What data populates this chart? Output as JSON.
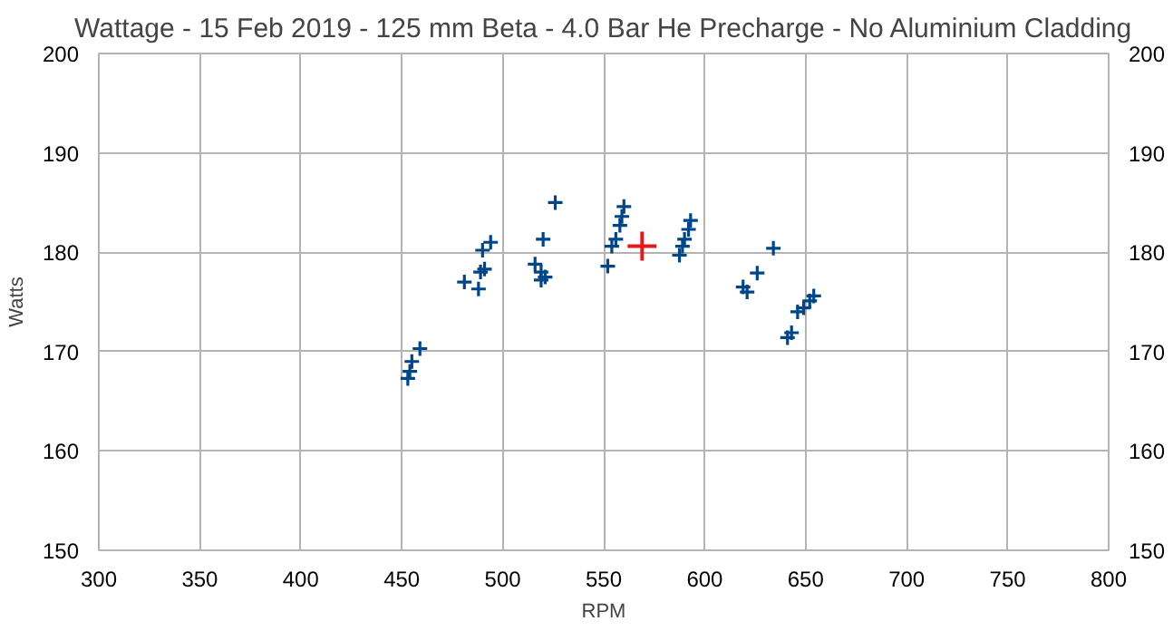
{
  "chart_data": {
    "type": "scatter",
    "title": "Wattage - 15 Feb 2019 - 125 mm Beta - 4.0 Bar He Precharge - No Aluminium Cladding",
    "xlabel": "RPM",
    "ylabel": "Watts",
    "xlim": [
      300,
      800
    ],
    "xticks": [
      300,
      350,
      400,
      450,
      500,
      550,
      600,
      650,
      700,
      750,
      800
    ],
    "ylim": [
      150,
      200
    ],
    "yticks": [
      150,
      160,
      170,
      180,
      190,
      200
    ],
    "y2lim": [
      150,
      200
    ],
    "y2ticks": [
      150,
      160,
      170,
      180,
      190,
      200
    ],
    "grid": true,
    "marker": "cross",
    "series": [
      {
        "color": "#004586",
        "x": [
          453,
          454,
          455,
          459,
          481,
          488,
          489,
          491,
          490,
          494,
          516,
          519,
          519,
          521,
          520,
          526,
          552,
          554,
          556,
          558,
          559,
          560,
          587.5,
          589,
          590,
          592,
          593,
          619,
          621,
          626,
          634,
          641,
          643,
          646,
          649,
          652,
          654
        ],
        "values": [
          167.3,
          168,
          169,
          170.3,
          177,
          176.3,
          178,
          178.3,
          180.2,
          181,
          178.8,
          178,
          177.2,
          177.5,
          181.3,
          185,
          178.6,
          180.6,
          181.3,
          182.7,
          183.6,
          184.6,
          179.7,
          180.6,
          181.3,
          182.3,
          183.2,
          176.5,
          176,
          177.9,
          180.4,
          171.4,
          171.9,
          174,
          174.4,
          175.1,
          175.6
        ]
      },
      {
        "color": "#e31a1c",
        "x": [
          569
        ],
        "values": [
          180.6
        ]
      }
    ]
  }
}
